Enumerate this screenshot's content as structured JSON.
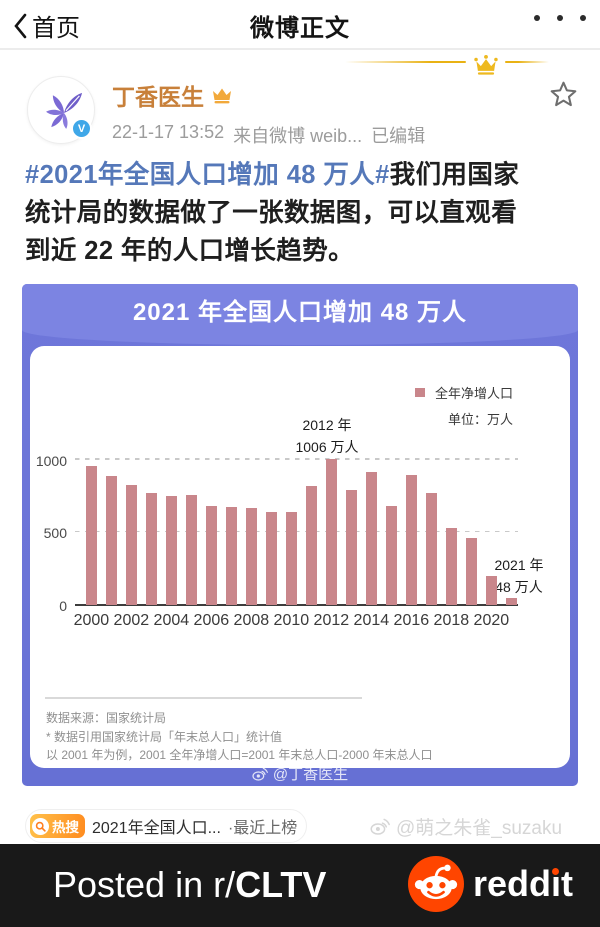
{
  "nav": {
    "back": "首页",
    "title": "微博正文"
  },
  "post": {
    "author": "丁香医生",
    "timestamp": "22-1-17 13:52",
    "source": "来自微博 weib...",
    "edited": "已编辑",
    "hashtag": "#2021年全国人口增加 48 万人#",
    "body_line1": "我们用国家",
    "body_line2": "统计局的数据做了一张数据图，可以直观看",
    "body_line3": "到近 22 年的人口增长趋势。"
  },
  "chart_card": {
    "title": "2021 年全国人口增加 48 万人",
    "legend": "全年净增人口",
    "unit": "单位：万人",
    "annotation_peak": {
      "line1": "2012 年",
      "line2": "1006 万人"
    },
    "annotation_last": {
      "line1": "2021 年",
      "line2": "48 万人"
    },
    "footnote1": "数据来源：国家统计局",
    "footnote2": "* 数据引用国家统计局「年末总人口」统计值",
    "footnote3": "以 2001 年为例，2001 全年净增人口=2001 年末总人口-2000 年末总人口",
    "watermark": "@丁香医生"
  },
  "chart_data": {
    "type": "bar",
    "title": "2021 年全国人口增加 48 万人",
    "ylabel": "万人",
    "categories": [
      2000,
      2001,
      2002,
      2003,
      2004,
      2005,
      2006,
      2007,
      2008,
      2009,
      2010,
      2011,
      2012,
      2013,
      2014,
      2015,
      2016,
      2017,
      2018,
      2019,
      2020,
      2021
    ],
    "values": [
      955,
      885,
      823,
      772,
      752,
      757,
      683,
      676,
      669,
      642,
      642,
      818,
      1006,
      793,
      915,
      678,
      892,
      772,
      528,
      462,
      200,
      48
    ],
    "yticks": [
      0,
      500,
      1000
    ],
    "xticks": [
      2000,
      2002,
      2004,
      2006,
      2008,
      2010,
      2012,
      2014,
      2016,
      2018,
      2020
    ],
    "ylim": [
      0,
      1100
    ],
    "legend_entries": [
      "全年净增人口"
    ],
    "bar_color": "#c9868b",
    "grid": "dashed-horizontal",
    "legend_position": "top-right"
  },
  "hot_search": {
    "badge": "热搜",
    "text": "2021年全国人口...",
    "suffix": "·最近上榜"
  },
  "page_watermark": "@萌之朱雀_suzaku",
  "footer_bar": {
    "text_prefix": "Posted in r/",
    "text_bold": "CLTV",
    "brand_word_pre": "redd",
    "brand_word_i": "ı",
    "brand_word_post": "t"
  }
}
